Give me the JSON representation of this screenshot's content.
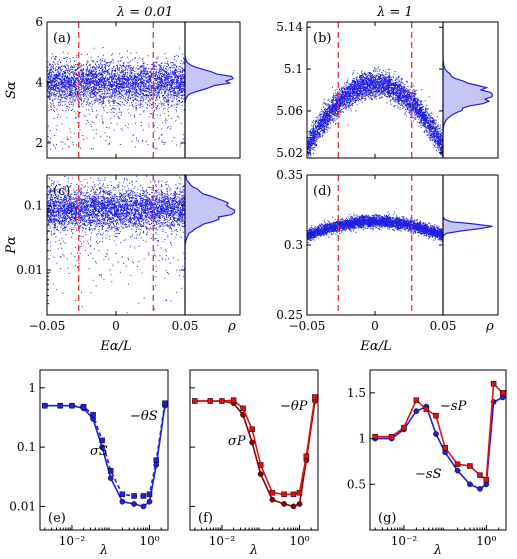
{
  "figure": {
    "col_titles": [
      "λ = 0.01",
      "λ = 1"
    ],
    "rho_label": "ρ",
    "xlabel_E": "Eα/L",
    "xlabel_lambda": "λ"
  },
  "colors": {
    "blue": "#1f1fe0",
    "red": "#e01010",
    "dark_red": "#8b0000",
    "dashed_red": "#e8303a",
    "fill_blue": "#c6c6f4"
  },
  "chart_data": [
    {
      "id": "a",
      "panel_label": "(a)",
      "type": "scatter",
      "lambda": 0.01,
      "ylabel": "Sα",
      "xlim": [
        -0.05,
        0.05
      ],
      "ylim": [
        1.5,
        6
      ],
      "yticks": [
        2,
        4,
        6
      ],
      "xticks": [
        -0.05,
        0,
        0.05
      ],
      "points_band": {
        "y_center": 4.0,
        "y_spread": 0.35,
        "y_tail_low": 1.8,
        "count": 4500
      },
      "dashed_x": [
        -0.027,
        0.027
      ],
      "histogram_rho": {
        "y_peak": 4.1,
        "width": 0.45
      }
    },
    {
      "id": "b",
      "panel_label": "(b)",
      "type": "scatter",
      "lambda": 1,
      "ylabel": "",
      "xlim": [
        -0.05,
        0.05
      ],
      "ylim": [
        5.015,
        5.145
      ],
      "yticks": [
        5.02,
        5.06,
        5.1,
        5.14
      ],
      "xticks": [
        -0.05,
        0,
        0.05
      ],
      "points_band": {
        "shape": "parabola",
        "y_top": 5.086,
        "y_edge": 5.025,
        "spread": 0.012,
        "count": 4500
      },
      "dashed_x": [
        -0.027,
        0.027
      ],
      "histogram_rho": {
        "y_peak": 5.075,
        "width": 0.02
      }
    },
    {
      "id": "c",
      "panel_label": "(c)",
      "type": "scatter",
      "lambda": 0.01,
      "ylabel": "Pα",
      "xscale": "linear",
      "yscale": "log",
      "xlim": [
        -0.05,
        0.05
      ],
      "ylim": [
        0.002,
        0.3
      ],
      "yticks": [
        0.01,
        0.1
      ],
      "ytick_labels": [
        "0.01",
        "0.1"
      ],
      "xticks": [
        -0.05,
        0,
        0.05
      ],
      "xtick_labels": [
        "−0.05",
        "0",
        "0.05"
      ],
      "points_band": {
        "y_center": 0.09,
        "y_log_spread": 0.25,
        "count": 4500
      },
      "dashed_x": [
        -0.027,
        0.027
      ],
      "histogram_rho": {
        "y_peak": 0.09,
        "log_width": 0.35
      }
    },
    {
      "id": "d",
      "panel_label": "(d)",
      "type": "scatter",
      "lambda": 1,
      "ylabel": "",
      "xlim": [
        -0.05,
        0.05
      ],
      "ylim": [
        0.25,
        0.35
      ],
      "yticks": [
        0.25,
        0.3,
        0.35
      ],
      "ytick_labels": [
        "0.25",
        "0.3",
        "0.35"
      ],
      "xticks": [
        -0.05,
        0,
        0.05
      ],
      "xtick_labels": [
        "−0.05",
        "0",
        "0.05"
      ],
      "points_band": {
        "shape": "parabola",
        "y_top": 0.317,
        "y_edge": 0.307,
        "spread": 0.004,
        "count": 4500
      },
      "dashed_x": [
        -0.027,
        0.027
      ],
      "histogram_rho": {
        "y_peak": 0.313,
        "width": 0.004
      }
    },
    {
      "id": "e",
      "panel_label": "(e)",
      "type": "line",
      "xscale": "log",
      "yscale": "log",
      "xlim": [
        0.0015,
        3
      ],
      "ylim": [
        0.004,
        2
      ],
      "xticks": [
        0.01,
        1
      ],
      "xtick_labels": [
        "10⁻²",
        "10⁰"
      ],
      "yticks": [
        0.01,
        0.1,
        1
      ],
      "ytick_labels": [
        "0.01",
        "0.1",
        "1"
      ],
      "annotations": [
        "−θS",
        "σS"
      ],
      "series": [
        {
          "name": "σS",
          "style": "solid",
          "marker": "circle",
          "color": "blue",
          "x": [
            0.002,
            0.005,
            0.01,
            0.02,
            0.035,
            0.06,
            0.1,
            0.2,
            0.4,
            0.7,
            1,
            1.5,
            2.5
          ],
          "y": [
            0.5,
            0.5,
            0.5,
            0.45,
            0.3,
            0.1,
            0.03,
            0.012,
            0.011,
            0.01,
            0.012,
            0.05,
            0.5
          ]
        },
        {
          "name": "θS",
          "style": "dashed",
          "marker": "square",
          "color": "blue",
          "x": [
            0.002,
            0.005,
            0.01,
            0.02,
            0.035,
            0.06,
            0.1,
            0.2,
            0.4,
            0.7,
            1,
            1.5,
            2.5
          ],
          "y": [
            0.5,
            0.5,
            0.5,
            0.48,
            0.35,
            0.13,
            0.04,
            0.016,
            0.015,
            0.015,
            0.016,
            0.06,
            0.55
          ]
        }
      ]
    },
    {
      "id": "f",
      "panel_label": "(f)",
      "type": "line",
      "xscale": "log",
      "yscale": "log",
      "xlim": [
        0.0015,
        3
      ],
      "ylim": [
        0.004,
        2
      ],
      "xticks": [
        0.01,
        1
      ],
      "xtick_labels": [
        "10⁻²",
        "10⁰"
      ],
      "annotations": [
        "−θP",
        "σP"
      ],
      "series": [
        {
          "name": "σP",
          "style": "solid",
          "marker": "circle",
          "color": "dark_red",
          "x": [
            0.002,
            0.005,
            0.01,
            0.02,
            0.035,
            0.06,
            0.1,
            0.2,
            0.4,
            0.7,
            1,
            1.5,
            2.5
          ],
          "y": [
            0.6,
            0.6,
            0.6,
            0.55,
            0.35,
            0.12,
            0.035,
            0.013,
            0.011,
            0.01,
            0.011,
            0.06,
            0.6
          ]
        },
        {
          "name": "θP",
          "style": "solid",
          "marker": "square",
          "color": "red",
          "x": [
            0.002,
            0.005,
            0.01,
            0.02,
            0.035,
            0.06,
            0.1,
            0.2,
            0.4,
            0.7,
            1,
            1.5,
            2.5
          ],
          "y": [
            0.6,
            0.6,
            0.6,
            0.62,
            0.45,
            0.2,
            0.05,
            0.017,
            0.016,
            0.016,
            0.017,
            0.07,
            0.7
          ]
        }
      ]
    },
    {
      "id": "g",
      "panel_label": "(g)",
      "type": "line",
      "xscale": "log",
      "yscale": "linear",
      "xlim": [
        0.0015,
        3
      ],
      "ylim": [
        0,
        1.75
      ],
      "xticks": [
        0.01,
        1
      ],
      "xtick_labels": [
        "10⁻²",
        "10⁰"
      ],
      "yticks": [
        0.5,
        1,
        1.5
      ],
      "ytick_labels": [
        "0.5",
        "1",
        "1.5"
      ],
      "annotations": [
        "−sP",
        "−sS"
      ],
      "series": [
        {
          "name": "sS",
          "style": "solid",
          "marker": "circle",
          "color": "blue",
          "x": [
            0.002,
            0.005,
            0.01,
            0.02,
            0.035,
            0.06,
            0.1,
            0.2,
            0.4,
            0.7,
            1,
            1.5,
            2.5
          ],
          "y": [
            1.0,
            1.0,
            1.1,
            1.3,
            1.35,
            1.05,
            0.85,
            0.65,
            0.5,
            0.45,
            0.5,
            1.4,
            1.45
          ]
        },
        {
          "name": "sP",
          "style": "solid",
          "marker": "square",
          "color": "red",
          "x": [
            0.002,
            0.005,
            0.01,
            0.02,
            0.035,
            0.06,
            0.1,
            0.2,
            0.4,
            0.7,
            1,
            1.5,
            2.5
          ],
          "y": [
            1.02,
            1.02,
            1.12,
            1.42,
            1.32,
            1.25,
            0.9,
            0.72,
            0.7,
            0.6,
            0.55,
            1.6,
            1.5
          ]
        }
      ]
    }
  ]
}
